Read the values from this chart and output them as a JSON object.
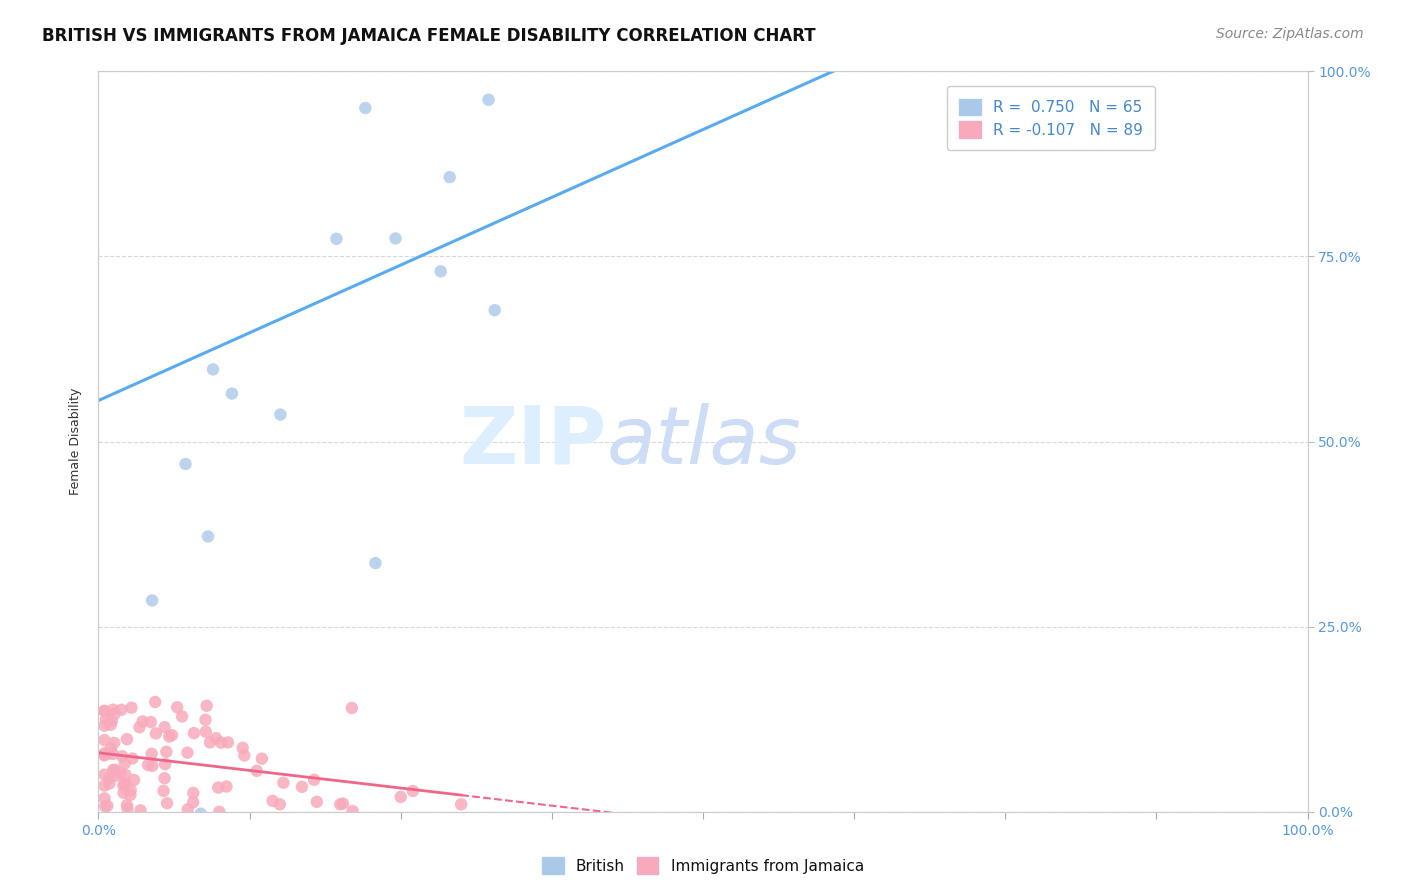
{
  "title": "BRITISH VS IMMIGRANTS FROM JAMAICA FEMALE DISABILITY CORRELATION CHART",
  "source": "Source: ZipAtlas.com",
  "ylabel": "Female Disability",
  "yticks_labels": [
    "0.0%",
    "25.0%",
    "50.0%",
    "75.0%",
    "100.0%"
  ],
  "ytick_values": [
    0.0,
    0.25,
    0.5,
    0.75,
    1.0
  ],
  "xticks_labels": [
    "0.0%",
    "100.0%"
  ],
  "xtick_values": [
    0.0,
    1.0
  ],
  "legend_british_r": "R =  0.750",
  "legend_british_n": "N = 65",
  "legend_jamaica_r": "R = -0.107",
  "legend_jamaica_n": "N = 89",
  "watermark": "ZIPatlas",
  "british_color": "#aac8e8",
  "british_line_color": "#5aaaee",
  "jamaica_color": "#f8aabb",
  "jamaica_line_color": "#ee6688",
  "background_color": "#ffffff",
  "grid_color": "#d8d8d8",
  "title_fontsize": 12,
  "axis_label_fontsize": 9,
  "tick_fontsize": 10,
  "legend_fontsize": 11,
  "source_fontsize": 10,
  "brit_r": 0.75,
  "brit_n": 65,
  "jam_r": -0.107,
  "jam_n": 89
}
